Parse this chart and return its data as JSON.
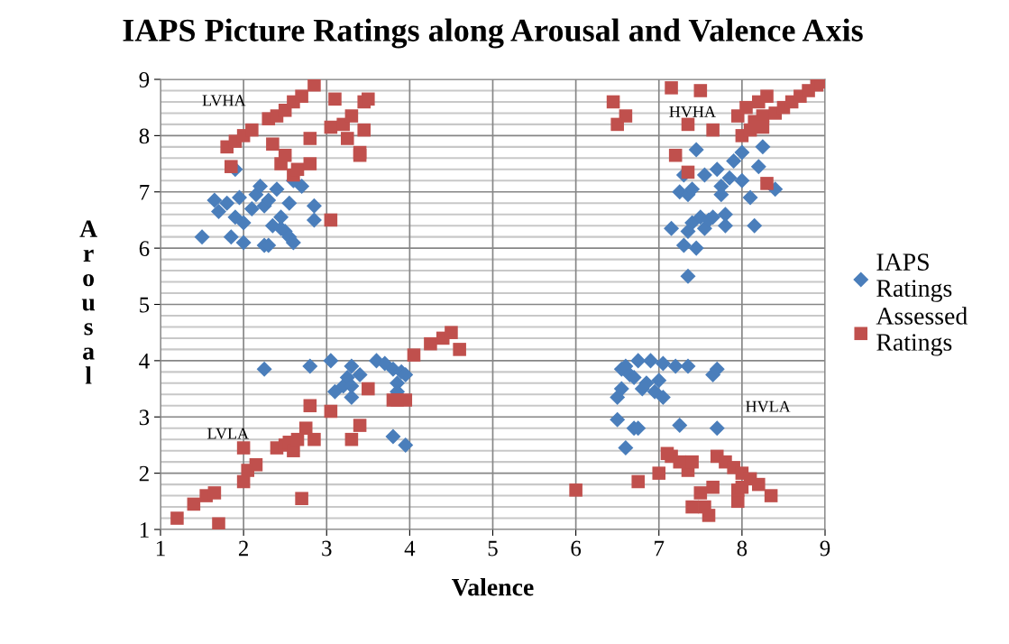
{
  "chart_data": {
    "type": "scatter",
    "title": "IAPS Picture Ratings along Arousal and Valence Axis",
    "xlabel": "Valence",
    "ylabel": "Arousal",
    "xlim": [
      1,
      9
    ],
    "ylim": [
      1,
      9
    ],
    "xticks": [
      1,
      2,
      3,
      4,
      5,
      6,
      7,
      8,
      9
    ],
    "yticks": [
      1,
      2,
      3,
      4,
      5,
      6,
      7,
      8,
      9
    ],
    "grid": true,
    "legend": "right",
    "annotations": [
      "LVHA",
      "HVHA",
      "LVLA",
      "HVLA"
    ],
    "series": [
      {
        "name": "IAPS Ratings",
        "color": "#4a7ebb",
        "marker": "diamond",
        "x": [
          1.5,
          1.65,
          1.7,
          1.8,
          1.9,
          1.95,
          2.0,
          2.0,
          2.1,
          2.15,
          2.2,
          2.25,
          2.25,
          2.3,
          2.35,
          2.4,
          2.45,
          2.5,
          2.55,
          2.6,
          2.55,
          2.7,
          2.85,
          2.85,
          1.85,
          1.9,
          2.3,
          2.45,
          2.6,
          7.15,
          7.25,
          7.3,
          7.3,
          7.35,
          7.35,
          7.4,
          7.4,
          7.45,
          7.45,
          7.5,
          7.55,
          7.6,
          7.65,
          7.7,
          7.75,
          7.75,
          7.8,
          7.8,
          7.85,
          7.9,
          8.0,
          8.0,
          8.1,
          8.15,
          8.2,
          8.25,
          8.4,
          7.55,
          7.35,
          2.25,
          2.8,
          3.05,
          3.1,
          3.2,
          3.25,
          3.3,
          3.3,
          3.4,
          3.6,
          3.7,
          3.8,
          3.85,
          3.9,
          3.95,
          3.85,
          3.8,
          3.95,
          3.3,
          6.5,
          6.5,
          6.55,
          6.55,
          6.6,
          6.6,
          6.65,
          6.7,
          6.7,
          6.75,
          6.75,
          6.8,
          6.85,
          6.9,
          6.95,
          7.0,
          7.05,
          7.05,
          7.2,
          7.25,
          7.35,
          7.65,
          7.7,
          7.7
        ],
        "values": [
          6.2,
          6.85,
          6.65,
          6.8,
          6.55,
          6.9,
          6.1,
          6.45,
          6.7,
          6.95,
          7.1,
          6.75,
          6.05,
          6.05,
          6.4,
          7.05,
          6.55,
          6.3,
          6.2,
          6.1,
          6.8,
          7.1,
          6.5,
          6.75,
          6.2,
          7.4,
          6.85,
          6.35,
          7.2,
          6.35,
          7.0,
          6.05,
          7.3,
          6.95,
          5.5,
          6.45,
          7.05,
          7.75,
          6.0,
          6.55,
          6.35,
          6.5,
          6.55,
          7.4,
          7.1,
          6.95,
          6.6,
          6.4,
          7.25,
          7.55,
          7.7,
          7.2,
          6.9,
          6.4,
          7.45,
          7.8,
          7.05,
          7.3,
          6.3,
          3.85,
          3.9,
          4.0,
          3.45,
          3.55,
          3.7,
          3.35,
          3.9,
          3.75,
          4.0,
          3.95,
          3.85,
          3.6,
          3.8,
          3.75,
          3.45,
          2.65,
          2.5,
          3.55,
          2.95,
          3.35,
          3.85,
          3.5,
          2.45,
          3.9,
          3.75,
          3.7,
          2.8,
          4.0,
          2.8,
          3.5,
          3.6,
          4.0,
          3.45,
          3.65,
          3.35,
          3.95,
          3.9,
          2.85,
          3.9,
          3.75,
          3.85,
          2.8
        ]
      },
      {
        "name": "Assessed Ratings",
        "color": "#c0504d",
        "marker": "square",
        "x": [
          1.8,
          1.85,
          1.9,
          2.0,
          2.1,
          2.3,
          2.35,
          2.4,
          2.45,
          2.5,
          2.5,
          2.6,
          2.6,
          2.65,
          2.7,
          2.8,
          2.8,
          2.85,
          3.05,
          3.05,
          3.1,
          3.2,
          3.25,
          3.3,
          3.4,
          3.45,
          3.45,
          3.5,
          3.4,
          6.45,
          6.5,
          6.6,
          7.15,
          7.2,
          7.35,
          7.35,
          7.5,
          7.65,
          7.95,
          8.0,
          8.05,
          8.1,
          8.15,
          8.2,
          8.25,
          8.3,
          8.3,
          8.4,
          8.5,
          8.6,
          8.7,
          8.8,
          8.9,
          8.95,
          8.25,
          1.2,
          1.4,
          1.55,
          1.65,
          1.7,
          2.0,
          2.0,
          2.05,
          2.15,
          2.4,
          2.5,
          2.55,
          2.6,
          2.65,
          2.7,
          2.75,
          2.8,
          2.85,
          3.05,
          3.3,
          3.4,
          3.5,
          3.8,
          3.95,
          4.05,
          4.25,
          4.4,
          4.5,
          4.6,
          3.85,
          6.0,
          6.75,
          7.0,
          7.1,
          7.15,
          7.25,
          7.35,
          7.4,
          7.4,
          7.5,
          7.55,
          7.6,
          7.7,
          7.8,
          7.9,
          7.95,
          7.95,
          8.0,
          8.0,
          8.1,
          8.2,
          8.35,
          7.65
        ],
        "values": [
          7.8,
          7.45,
          7.9,
          8.0,
          8.1,
          8.3,
          7.85,
          8.35,
          7.5,
          8.45,
          7.65,
          7.3,
          8.6,
          7.4,
          8.7,
          7.95,
          7.5,
          8.9,
          8.15,
          6.5,
          8.65,
          8.2,
          7.95,
          8.35,
          7.7,
          8.1,
          8.6,
          8.65,
          7.65,
          8.6,
          8.2,
          8.35,
          8.85,
          7.65,
          7.35,
          8.2,
          8.8,
          8.1,
          8.35,
          8.0,
          8.5,
          8.1,
          8.25,
          8.6,
          8.35,
          8.7,
          7.15,
          8.4,
          8.5,
          8.6,
          8.7,
          8.8,
          8.9,
          8.95,
          8.15,
          1.2,
          1.45,
          1.6,
          1.65,
          1.1,
          2.45,
          1.85,
          2.05,
          2.15,
          2.45,
          2.5,
          2.55,
          2.4,
          2.6,
          1.55,
          2.8,
          3.2,
          2.6,
          3.1,
          2.6,
          2.85,
          3.5,
          3.3,
          3.3,
          4.1,
          4.3,
          4.4,
          4.5,
          4.2,
          3.3,
          1.7,
          1.85,
          2.0,
          2.35,
          2.3,
          2.2,
          2.05,
          2.2,
          1.4,
          1.65,
          1.4,
          1.25,
          2.3,
          2.2,
          2.1,
          1.5,
          1.7,
          2.0,
          1.75,
          1.9,
          1.8,
          1.6,
          1.75
        ]
      }
    ]
  }
}
